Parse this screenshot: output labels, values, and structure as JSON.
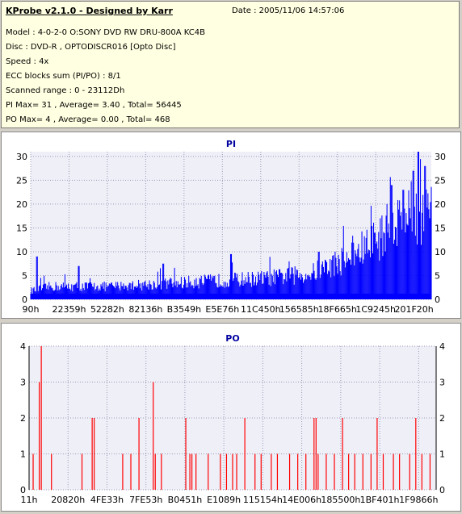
{
  "header": {
    "title": "KProbe v2.1.0 - Designed by Karr",
    "date": "Date : 2005/11/06 14:57:06",
    "lines": [
      "Model : 4-0-2-0 O:SONY    DVD RW DRU-800A  KC4B",
      "Disc : DVD-R , OPTODISCR016 [Opto Disc]",
      "Speed : 4x",
      "ECC blocks sum (PI/PO) : 8/1",
      "Scanned range : 0 - 23112Dh",
      "PI Max= 31 , Average= 3.40 , Total= 56445",
      "PO Max= 4 , Average= 0.00 , Total= 468"
    ]
  },
  "chart_data": [
    {
      "type": "bar",
      "title": "PI",
      "ylim": [
        0,
        31
      ],
      "yticks": [
        0,
        5,
        10,
        15,
        20,
        25,
        30
      ],
      "x_tick_labels": [
        "90h",
        "22359h",
        "52282h",
        "82136h",
        "B3549h",
        "E5E76h",
        "11C450h",
        "156585h",
        "18F665h",
        "1C9245h",
        "201F20h"
      ],
      "color": "#0000ff",
      "grid": true,
      "envelope": [
        [
          0,
          2
        ],
        [
          0.05,
          3
        ],
        [
          0.1,
          3
        ],
        [
          0.2,
          3
        ],
        [
          0.3,
          3.5
        ],
        [
          0.4,
          4
        ],
        [
          0.5,
          4.5
        ],
        [
          0.6,
          5
        ],
        [
          0.7,
          6
        ],
        [
          0.75,
          8
        ],
        [
          0.8,
          10
        ],
        [
          0.85,
          13
        ],
        [
          0.9,
          17
        ],
        [
          0.95,
          20
        ],
        [
          1,
          20
        ]
      ],
      "peaks": [
        [
          0.015,
          9
        ],
        [
          0.12,
          7
        ],
        [
          0.33,
          7.5
        ],
        [
          0.5,
          9.5
        ],
        [
          0.72,
          10
        ],
        [
          0.86,
          14
        ],
        [
          0.9,
          24
        ],
        [
          0.93,
          23
        ],
        [
          0.955,
          27
        ],
        [
          0.968,
          31
        ],
        [
          0.985,
          28
        ]
      ]
    },
    {
      "type": "bar",
      "title": "PO",
      "ylim": [
        0,
        4
      ],
      "yticks": [
        0,
        1,
        2,
        3,
        4
      ],
      "x_tick_labels": [
        "11h",
        "20820h",
        "4FE33h",
        "7FE53h",
        "B0451h",
        "E1089h",
        "115154h",
        "14E006h",
        "185500h",
        "1BF401h",
        "1F9866h"
      ],
      "color": "#ff0000",
      "grid": true,
      "spikes": [
        [
          0.01,
          1
        ],
        [
          0.025,
          3
        ],
        [
          0.03,
          4
        ],
        [
          0.055,
          1
        ],
        [
          0.13,
          1
        ],
        [
          0.155,
          2
        ],
        [
          0.16,
          2
        ],
        [
          0.23,
          1
        ],
        [
          0.25,
          1
        ],
        [
          0.27,
          2
        ],
        [
          0.305,
          3
        ],
        [
          0.31,
          1
        ],
        [
          0.325,
          1
        ],
        [
          0.385,
          2
        ],
        [
          0.395,
          1
        ],
        [
          0.4,
          1
        ],
        [
          0.41,
          1
        ],
        [
          0.44,
          1
        ],
        [
          0.47,
          1
        ],
        [
          0.485,
          1
        ],
        [
          0.5,
          1
        ],
        [
          0.51,
          1
        ],
        [
          0.53,
          2
        ],
        [
          0.555,
          1
        ],
        [
          0.57,
          1
        ],
        [
          0.595,
          1
        ],
        [
          0.61,
          1
        ],
        [
          0.64,
          1
        ],
        [
          0.66,
          1
        ],
        [
          0.68,
          1
        ],
        [
          0.7,
          2
        ],
        [
          0.705,
          2
        ],
        [
          0.71,
          1
        ],
        [
          0.73,
          1
        ],
        [
          0.75,
          1
        ],
        [
          0.77,
          2
        ],
        [
          0.785,
          1
        ],
        [
          0.8,
          1
        ],
        [
          0.82,
          1
        ],
        [
          0.84,
          1
        ],
        [
          0.855,
          2
        ],
        [
          0.87,
          1
        ],
        [
          0.895,
          1
        ],
        [
          0.91,
          1
        ],
        [
          0.935,
          1
        ],
        [
          0.95,
          2
        ],
        [
          0.965,
          1
        ],
        [
          0.985,
          1
        ]
      ]
    }
  ]
}
